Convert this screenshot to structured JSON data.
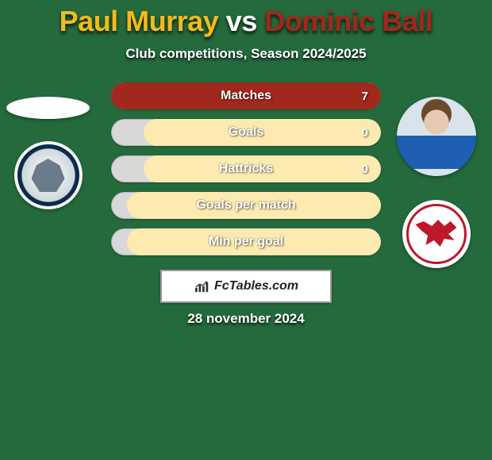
{
  "background_color": "#246a3c",
  "title": {
    "full": "Paul Murray vs Dominic Ball",
    "player1": "Paul Murray",
    "connector": " vs ",
    "player2": "Dominic Ball",
    "player1_color": "#f3b91f",
    "connector_color": "#ffffff",
    "player2_color": "#a0281c"
  },
  "subtitle": "Club competitions, Season 2024/2025",
  "stats": {
    "bar_track_color": "#d8d8d8",
    "bar_fill_color": "#fceab0",
    "bar_fill_full_color": "#a0281c",
    "label_color": "#ffffff",
    "rows": [
      {
        "label": "Matches",
        "right": "7",
        "fill_pct": 100,
        "fill_color": "#a0281c"
      },
      {
        "label": "Goals",
        "right": "0",
        "fill_pct": 88,
        "fill_color": "#fceab0"
      },
      {
        "label": "Hattricks",
        "right": "0",
        "fill_pct": 88,
        "fill_color": "#fceab0"
      },
      {
        "label": "Goals per match",
        "right": "",
        "fill_pct": 94,
        "fill_color": "#fceab0"
      },
      {
        "label": "Min per goal",
        "right": "",
        "fill_pct": 94,
        "fill_color": "#fceab0"
      }
    ]
  },
  "watermark": "FcTables.com",
  "date": "28 november 2024"
}
